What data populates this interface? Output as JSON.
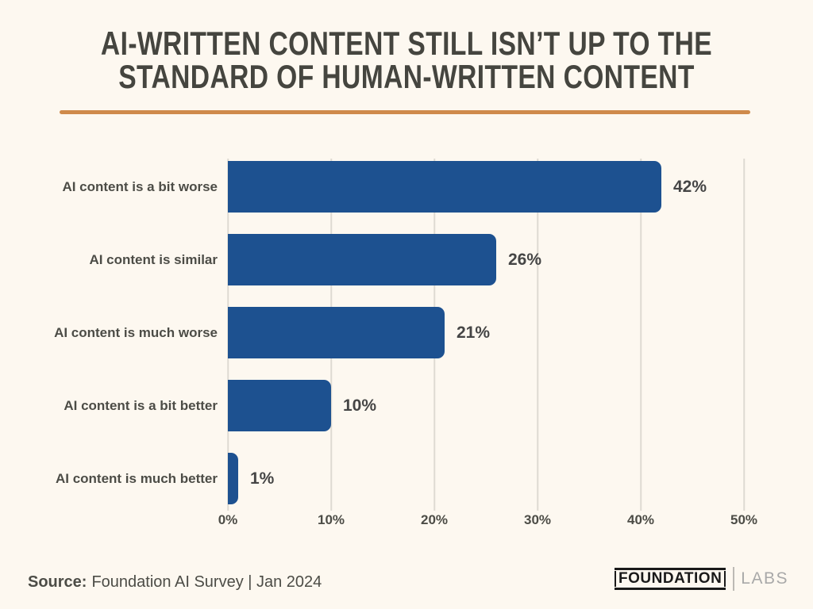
{
  "title": {
    "line1": "AI-WRITTEN CONTENT STILL ISN’T UP TO THE",
    "line2": "STANDARD OF HUMAN-WRITTEN CONTENT"
  },
  "chart_data": {
    "type": "bar",
    "orientation": "horizontal",
    "title": "AI-WRITTEN CONTENT STILL ISN’T UP TO THE STANDARD OF HUMAN-WRITTEN CONTENT",
    "categories": [
      "AI content is a bit worse",
      "AI content is similar",
      "AI content is much worse",
      "AI content is a bit better",
      "AI content is much better"
    ],
    "values": [
      42,
      26,
      21,
      10,
      1
    ],
    "value_labels": [
      "42%",
      "26%",
      "21%",
      "10%",
      "1%"
    ],
    "x_ticks": [
      "0%",
      "10%",
      "20%",
      "30%",
      "40%",
      "50%"
    ],
    "xlim": [
      0,
      50
    ],
    "xlabel": "",
    "ylabel": "",
    "grid": true,
    "legend": false
  },
  "footer": {
    "source_label": "Source:",
    "source_text": "Foundation AI Survey | Jan 2024",
    "logo_primary": "FOUNDATION",
    "logo_secondary": "LABS"
  },
  "colors": {
    "background": "#fdf8f0",
    "title_text": "#45453f",
    "accent_line": "#cf8a4b",
    "bar": "#1d5190",
    "label_text": "#4c4c46",
    "value_text": "#454545",
    "gridline": "#dedad2",
    "logo_black": "#1a1a1a",
    "logo_gray": "#a9a9a9"
  }
}
